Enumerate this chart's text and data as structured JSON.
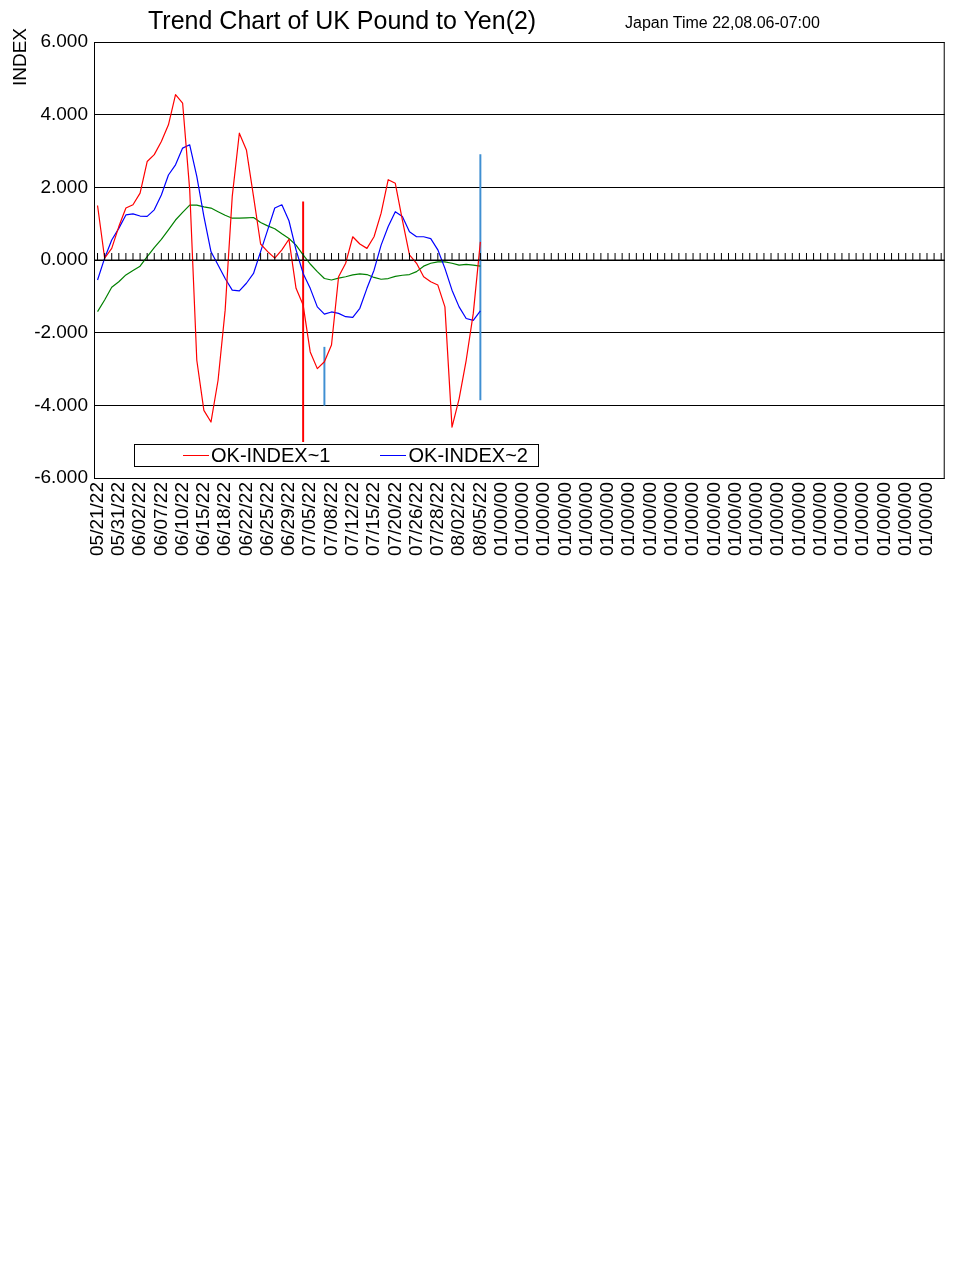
{
  "chart_data": {
    "type": "line",
    "title": "Trend Chart of UK Pound to Yen(2)",
    "subtitle": "Japan Time  22,08.06-07:00",
    "ylabel": "INDEX",
    "categories": [
      "05/21/22",
      null,
      null,
      "05/31/22",
      null,
      null,
      "06/02/22",
      null,
      null,
      "06/07/22",
      null,
      null,
      "06/10/22",
      null,
      null,
      "06/15/22",
      null,
      null,
      "06/18/22",
      null,
      null,
      "06/22/22",
      null,
      null,
      "06/25/22",
      null,
      null,
      "06/29/22",
      null,
      null,
      "07/05/22",
      null,
      null,
      "07/08/22",
      null,
      null,
      "07/12/22",
      null,
      null,
      "07/15/22",
      null,
      null,
      "07/20/22",
      null,
      null,
      "07/26/22",
      null,
      null,
      "07/28/22",
      null,
      null,
      "08/02/22",
      null,
      null,
      "08/05/22",
      null,
      null,
      "01/00/00",
      null,
      null,
      "01/00/00",
      null,
      null,
      "01/00/00",
      null,
      null,
      "01/00/00",
      null,
      null,
      "01/00/00",
      null,
      null,
      "01/00/00",
      null,
      null,
      "01/00/00",
      null,
      null,
      "01/00/00",
      null,
      null,
      "01/00/00",
      null,
      null,
      "01/00/00",
      null,
      null,
      "01/00/00",
      null,
      null,
      "01/00/00",
      null,
      null,
      "01/00/00",
      null,
      null,
      "01/00/00",
      null,
      null,
      "01/00/00",
      null,
      null,
      "01/00/00",
      null,
      null,
      "01/00/00",
      null,
      null,
      "01/00/00",
      null,
      null,
      "01/00/00",
      null,
      null,
      "01/00/00",
      null,
      null,
      "01/00/00",
      null,
      null
    ],
    "series": [
      {
        "name": "OK-INDEX~1",
        "color": "#ff0000",
        "values": [
          1.5,
          0.05,
          0.32,
          0.92,
          1.43,
          1.52,
          1.84,
          2.71,
          2.9,
          3.26,
          3.72,
          4.55,
          4.32,
          1.93,
          -2.76,
          -4.14,
          -4.46,
          -3.31,
          -1.38,
          1.75,
          3.49,
          3.03,
          1.75,
          0.44,
          0.23,
          0.05,
          0.28,
          0.57,
          -0.78,
          -1.24,
          -2.53,
          -2.99,
          -2.8,
          -2.34,
          -0.46,
          -0.09,
          0.64,
          0.44,
          0.32,
          0.64,
          1.29,
          2.21,
          2.11,
          1.1,
          0.14,
          -0.09,
          -0.46,
          -0.6,
          -0.69,
          -1.29,
          -4.6,
          -3.82,
          -2.76,
          -1.47,
          0.5,
          null,
          null,
          null,
          null,
          null,
          null,
          null,
          null,
          null,
          null,
          null,
          null,
          null,
          null,
          null,
          null,
          null,
          null,
          null,
          null,
          null,
          null,
          null,
          null,
          null,
          null,
          null,
          null,
          null,
          null,
          null,
          null,
          null,
          null,
          null,
          null,
          null,
          null,
          null,
          null,
          null,
          null,
          null,
          null,
          null,
          null,
          null,
          null,
          null,
          null,
          null,
          null,
          null,
          null,
          null,
          null,
          null,
          null,
          null,
          null,
          null,
          null,
          null,
          null,
          null
        ]
      },
      {
        "name": "OK-INDEX~2",
        "color": "#0000ff",
        "values": [
          -0.55,
          0.05,
          0.55,
          0.87,
          1.24,
          1.27,
          1.21,
          1.2,
          1.38,
          1.79,
          2.34,
          2.62,
          3.08,
          3.17,
          2.3,
          1.2,
          0.23,
          -0.14,
          -0.51,
          -0.83,
          -0.85,
          -0.64,
          -0.37,
          0.23,
          0.83,
          1.43,
          1.52,
          1.08,
          0.28,
          -0.37,
          -0.78,
          -1.29,
          -1.49,
          -1.43,
          -1.47,
          -1.56,
          -1.58,
          -1.33,
          -0.78,
          -0.28,
          0.41,
          0.92,
          1.33,
          1.2,
          0.78,
          0.64,
          0.64,
          0.59,
          0.28,
          -0.23,
          -0.83,
          -1.29,
          -1.61,
          -1.66,
          -1.4,
          null,
          null,
          null,
          null,
          null,
          null,
          null,
          null,
          null,
          null,
          null,
          null,
          null,
          null,
          null,
          null,
          null,
          null,
          null,
          null,
          null,
          null,
          null,
          null,
          null,
          null,
          null,
          null,
          null,
          null,
          null,
          null,
          null,
          null,
          null,
          null,
          null,
          null,
          null,
          null,
          null,
          null,
          null,
          null,
          null,
          null,
          null,
          null,
          null,
          null,
          null,
          null,
          null,
          null,
          null,
          null,
          null,
          null,
          null,
          null,
          null,
          null,
          null,
          null,
          null
        ]
      },
      {
        "color": "#008000",
        "values": [
          -1.42,
          -1.1,
          -0.75,
          -0.6,
          -0.41,
          -0.29,
          -0.17,
          0.09,
          0.34,
          0.57,
          0.83,
          1.1,
          1.31,
          1.51,
          1.51,
          1.46,
          1.43,
          1.33,
          1.23,
          1.15,
          1.15,
          1.16,
          1.17,
          1.03,
          0.94,
          0.86,
          0.72,
          0.59,
          0.41,
          0.14,
          -0.11,
          -0.32,
          -0.51,
          -0.55,
          -0.5,
          -0.46,
          -0.41,
          -0.38,
          -0.4,
          -0.48,
          -0.53,
          -0.51,
          -0.45,
          -0.42,
          -0.4,
          -0.32,
          -0.17,
          -0.09,
          -0.05,
          -0.05,
          -0.09,
          -0.14,
          -0.12,
          -0.14,
          -0.17,
          null,
          null,
          null,
          null,
          null,
          null,
          null,
          null,
          null,
          null,
          null,
          null,
          null,
          null,
          null,
          null,
          null,
          null,
          null,
          null,
          null,
          null,
          null,
          null,
          null,
          null,
          null,
          null,
          null,
          null,
          null,
          null,
          null,
          null,
          null,
          null,
          null,
          null,
          null,
          null,
          null,
          null,
          null,
          null,
          null,
          null,
          null,
          null,
          null,
          null,
          null,
          null,
          null,
          null,
          null,
          null,
          null,
          null,
          null,
          null,
          null,
          null,
          null,
          null,
          null
        ]
      },
      {
        "type": "bar",
        "color": "#ff0000",
        "base": [
          null,
          null,
          null,
          null,
          null,
          null,
          null,
          null,
          null,
          null,
          null,
          null,
          null,
          null,
          null,
          null,
          null,
          null,
          null,
          null,
          null,
          null,
          null,
          null,
          null,
          null,
          null,
          null,
          null,
          -5.0,
          null,
          null,
          null,
          null,
          null,
          null,
          null,
          null,
          null,
          null,
          null,
          null,
          null,
          null,
          null,
          null,
          null,
          null,
          null,
          null,
          null,
          null,
          null,
          null,
          null,
          null,
          null,
          null,
          null,
          null,
          null,
          null,
          null,
          null,
          null,
          null,
          null,
          null,
          null,
          null,
          null,
          null,
          null,
          null,
          null,
          null,
          null,
          null,
          null,
          null,
          null,
          null,
          null,
          null,
          null,
          null,
          null,
          null,
          null,
          null,
          null,
          null,
          null,
          null,
          null,
          null,
          null,
          null,
          null,
          null,
          null,
          null,
          null,
          null,
          null,
          null,
          null,
          null,
          null,
          null,
          null,
          null,
          null,
          null,
          null,
          null,
          null,
          null,
          null,
          null
        ],
        "values": [
          null,
          null,
          null,
          null,
          null,
          null,
          null,
          null,
          null,
          null,
          null,
          null,
          null,
          null,
          null,
          null,
          null,
          null,
          null,
          null,
          null,
          null,
          null,
          null,
          null,
          null,
          null,
          null,
          null,
          6.6,
          null,
          null,
          null,
          null,
          null,
          null,
          null,
          null,
          null,
          null,
          null,
          null,
          null,
          null,
          null,
          null,
          null,
          null,
          null,
          null,
          null,
          null,
          null,
          null,
          null,
          null,
          null,
          null,
          null,
          null,
          null,
          null,
          null,
          null,
          null,
          null,
          null,
          null,
          null,
          null,
          null,
          null,
          null,
          null,
          null,
          null,
          null,
          null,
          null,
          null,
          null,
          null,
          null,
          null,
          null,
          null,
          null,
          null,
          null,
          null,
          null,
          null,
          null,
          null,
          null,
          null,
          null,
          null,
          null,
          null,
          null,
          null,
          null,
          null,
          null,
          null,
          null,
          null,
          null,
          null,
          null,
          null,
          null,
          null,
          null,
          null,
          null,
          null,
          null,
          null
        ]
      },
      {
        "type": "bar",
        "color": "#3f8fd2",
        "base": [
          null,
          null,
          null,
          null,
          null,
          null,
          null,
          null,
          null,
          null,
          null,
          null,
          null,
          null,
          null,
          null,
          null,
          null,
          null,
          null,
          null,
          null,
          null,
          null,
          null,
          null,
          null,
          null,
          null,
          null,
          null,
          null,
          -4.0,
          null,
          null,
          null,
          null,
          null,
          null,
          null,
          null,
          null,
          null,
          null,
          null,
          null,
          null,
          null,
          null,
          null,
          null,
          null,
          null,
          null,
          -3.85,
          null,
          null,
          null,
          null,
          null,
          null,
          null,
          null,
          null,
          null,
          null,
          null,
          null,
          null,
          null,
          null,
          null,
          null,
          null,
          null,
          null,
          null,
          null,
          null,
          null,
          null,
          null,
          null,
          null,
          null,
          null,
          null,
          null,
          null,
          null,
          null,
          null,
          null,
          null,
          null,
          null,
          null,
          null,
          null,
          null,
          null,
          null,
          null,
          null,
          null,
          null,
          null,
          null,
          null,
          null,
          null,
          null,
          null,
          null,
          null,
          null,
          null,
          null,
          null,
          null
        ],
        "values": [
          null,
          null,
          null,
          null,
          null,
          null,
          null,
          null,
          null,
          null,
          null,
          null,
          null,
          null,
          null,
          null,
          null,
          null,
          null,
          null,
          null,
          null,
          null,
          null,
          null,
          null,
          null,
          null,
          null,
          null,
          null,
          null,
          1.6,
          null,
          null,
          null,
          null,
          null,
          null,
          null,
          null,
          null,
          null,
          null,
          null,
          null,
          null,
          null,
          null,
          null,
          null,
          null,
          null,
          null,
          6.75,
          null,
          null,
          null,
          null,
          null,
          null,
          null,
          null,
          null,
          null,
          null,
          null,
          null,
          null,
          null,
          null,
          null,
          null,
          null,
          null,
          null,
          null,
          null,
          null,
          null,
          null,
          null,
          null,
          null,
          null,
          null,
          null,
          null,
          null,
          null,
          null,
          null,
          null,
          null,
          null,
          null,
          null,
          null,
          null,
          null,
          null,
          null,
          null,
          null,
          null,
          null,
          null,
          null,
          null,
          null,
          null,
          null,
          null,
          null,
          null,
          null,
          null,
          null,
          null,
          null
        ]
      }
    ],
    "ylim": [
      -6,
      6
    ],
    "yticks": [
      {
        "value": 6,
        "label": "6.000"
      },
      {
        "value": 4,
        "label": "4.000"
      },
      {
        "value": 2,
        "label": "2.000"
      },
      {
        "value": 0,
        "label": "0.000"
      },
      {
        "value": -2,
        "label": "-2.000"
      },
      {
        "value": -4,
        "label": "-4.000"
      },
      {
        "value": -6,
        "label": "-6.000"
      }
    ],
    "grid": "y",
    "legend": "bottom left"
  }
}
